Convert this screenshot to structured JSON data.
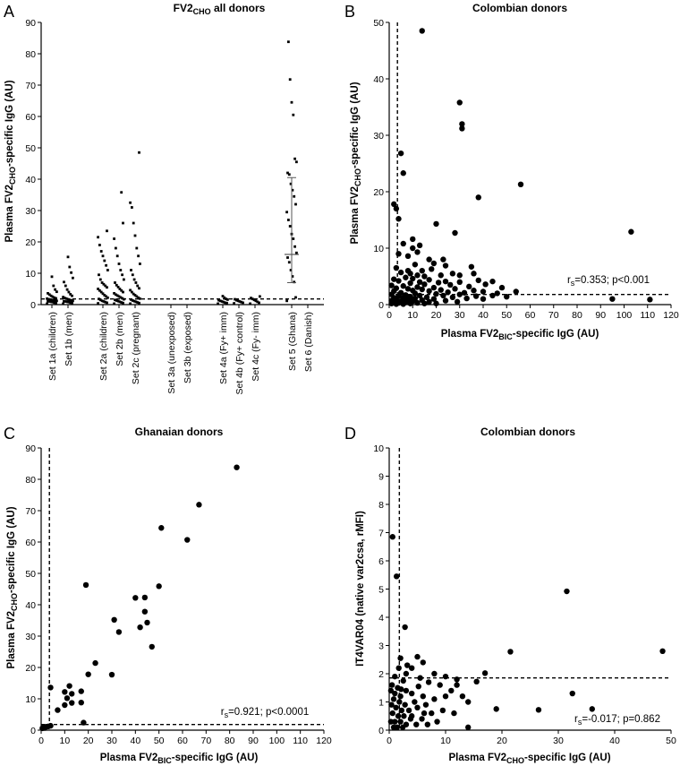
{
  "chart_data": [
    {
      "panel": "A",
      "type": "scatter",
      "title": "FV2CHO all donors",
      "title_main": "FV2",
      "title_sub": "CHO",
      "title_tail": " all donors",
      "ylabel_main": "Plasma FV2",
      "ylabel_sub": "CHO",
      "ylabel_tail": "-specific IgG (AU)",
      "ylim": [
        0,
        90
      ],
      "yticks": [
        0,
        10,
        20,
        30,
        40,
        50,
        60,
        70,
        80,
        90
      ],
      "cutoff": 1.8,
      "categories": [
        "Set 1a (children)",
        "Set 1b (men)",
        "Set 2a (children)",
        "Set 2b (men)",
        "Set 2c (pregnant)",
        "Set 3a (unexposed)",
        "Set 3b (exposed)",
        "Set 4a (Fy+ imm)",
        "Set 4b (Fy+ control)",
        "Set 4c (Fy- imm)",
        "Set 5 (Ghana)",
        "Set 6 (Danish)"
      ],
      "groups": [
        [
          0.3,
          0.5,
          0.6,
          0.8,
          0.9,
          1.0,
          1.1,
          1.2,
          1.3,
          1.4,
          1.5,
          1.6,
          1.7,
          1.9,
          2.0,
          2.2,
          2.5,
          2.8,
          3.2,
          3.6,
          4.1,
          4.8,
          6.0,
          8.9
        ],
        [
          0.3,
          0.5,
          0.6,
          0.8,
          0.9,
          1.0,
          1.1,
          1.2,
          1.4,
          1.5,
          1.7,
          1.9,
          2.1,
          2.4,
          2.8,
          3.3,
          4.0,
          4.8,
          6.0,
          7.2,
          8.5,
          10.2,
          12.0,
          15.2
        ],
        [
          0.4,
          0.6,
          0.8,
          1.0,
          1.2,
          1.5,
          1.8,
          2.2,
          2.6,
          3.0,
          3.5,
          4.0,
          4.5,
          5.0,
          5.5,
          6.0,
          6.5,
          7.0,
          8.0,
          9.5,
          11.0,
          12.5,
          14.0,
          15.5,
          17.0,
          19.0,
          21.5,
          23.5
        ],
        [
          0.3,
          0.5,
          0.7,
          0.9,
          1.1,
          1.3,
          1.5,
          1.7,
          2.0,
          2.3,
          2.6,
          2.9,
          3.2,
          3.6,
          4.0,
          4.5,
          5.0,
          5.6,
          6.2,
          7.0,
          8.0,
          9.5,
          11.0,
          13.0,
          15.5,
          18.0,
          21.0,
          26.0,
          35.8
        ],
        [
          0.3,
          0.5,
          0.7,
          0.9,
          1.1,
          1.3,
          1.6,
          1.9,
          2.2,
          2.6,
          3.0,
          3.4,
          4.0,
          4.6,
          5.2,
          6.0,
          7.0,
          8.0,
          9.5,
          11.0,
          13.0,
          15.5,
          18.0,
          22.0,
          26.0,
          31.0,
          32.5,
          48.5
        ],
        [],
        [],
        [
          0.3,
          0.5,
          0.6,
          0.8,
          1.0,
          1.2,
          1.4,
          1.6,
          1.8,
          2.2,
          2.7
        ],
        [
          0.4,
          0.6,
          0.8,
          1.0,
          1.2,
          1.4,
          1.7
        ],
        [
          0.3,
          0.6,
          0.9,
          1.2,
          1.5,
          1.8,
          2.1,
          2.6
        ],
        [
          1.2,
          2.3,
          7.2,
          9.0,
          11.0,
          13.5,
          15.0,
          16.5,
          18.5,
          21.0,
          22.5,
          25.0,
          27.0,
          29.5,
          32.0,
          34.5,
          36.5,
          38.5,
          41.5,
          42.0,
          45.5,
          46.5,
          60.5,
          64.5,
          71.8,
          83.8
        ],
        []
      ],
      "median_bars": [
        {
          "group": 10,
          "median": 16.0,
          "low": 7.0,
          "high": 40.5
        }
      ]
    },
    {
      "panel": "B",
      "type": "scatter",
      "title": "Colombian donors",
      "xlabel_main": "Plasma FV2",
      "xlabel_sub": "BIC",
      "xlabel_tail": "-specific IgG (AU)",
      "ylabel_main": "Plasma FV2",
      "ylabel_sub": "CHO",
      "ylabel_tail": "-specific IgG (AU)",
      "xlim": [
        0,
        120
      ],
      "ylim": [
        0,
        50
      ],
      "xticks": [
        0,
        10,
        20,
        30,
        40,
        50,
        60,
        70,
        80,
        90,
        100,
        110,
        120
      ],
      "yticks": [
        0,
        10,
        20,
        30,
        40,
        50
      ],
      "x_cutoff": 3.5,
      "y_cutoff": 1.8,
      "stat_prefix": "r",
      "stat_sub": "s",
      "stat_text": "=0.353; p<0.001",
      "points": [
        [
          14,
          48.5
        ],
        [
          30,
          35.8
        ],
        [
          31,
          32.0
        ],
        [
          31,
          31.2
        ],
        [
          5,
          26.8
        ],
        [
          6,
          23.3
        ],
        [
          56,
          21.3
        ],
        [
          38,
          19.0
        ],
        [
          2,
          17.8
        ],
        [
          3,
          17.0
        ],
        [
          4,
          15.2
        ],
        [
          20,
          14.3
        ],
        [
          103,
          12.9
        ],
        [
          28,
          12.7
        ],
        [
          10,
          11.6
        ],
        [
          6,
          10.8
        ],
        [
          13,
          10.5
        ],
        [
          10,
          10.0
        ],
        [
          12,
          9.3
        ],
        [
          4,
          9.0
        ],
        [
          8,
          8.6
        ],
        [
          17,
          8.0
        ],
        [
          23,
          8.0
        ],
        [
          19,
          7.3
        ],
        [
          11,
          7.1
        ],
        [
          24,
          6.9
        ],
        [
          3,
          6.5
        ],
        [
          8,
          6.0
        ],
        [
          14,
          6.0
        ],
        [
          35,
          6.7
        ],
        [
          18,
          6.3
        ],
        [
          5,
          5.7
        ],
        [
          9,
          5.5
        ],
        [
          12,
          5.2
        ],
        [
          15,
          5.0
        ],
        [
          22,
          5.2
        ],
        [
          27,
          5.5
        ],
        [
          30,
          5.2
        ],
        [
          36,
          5.5
        ],
        [
          7,
          4.8
        ],
        [
          2,
          4.5
        ],
        [
          10,
          4.6
        ],
        [
          17,
          4.4
        ],
        [
          24,
          4.1
        ],
        [
          4,
          4.2
        ],
        [
          13,
          4.0
        ],
        [
          21,
          3.9
        ],
        [
          30,
          4.0
        ],
        [
          38,
          4.3
        ],
        [
          44,
          4.1
        ],
        [
          9,
          3.8
        ],
        [
          15,
          3.6
        ],
        [
          1,
          3.4
        ],
        [
          26,
          3.5
        ],
        [
          34,
          3.2
        ],
        [
          41,
          3.6
        ],
        [
          6,
          3.3
        ],
        [
          12,
          3.1
        ],
        [
          19,
          3.0
        ],
        [
          48,
          3.0
        ],
        [
          3,
          2.9
        ],
        [
          8,
          2.8
        ],
        [
          14,
          2.7
        ],
        [
          22,
          2.6
        ],
        [
          28,
          2.8
        ],
        [
          36,
          2.5
        ],
        [
          2,
          2.4
        ],
        [
          10,
          2.5
        ],
        [
          17,
          2.4
        ],
        [
          25,
          2.2
        ],
        [
          32,
          2.1
        ],
        [
          40,
          2.3
        ],
        [
          46,
          2.0
        ],
        [
          54,
          2.3
        ],
        [
          5,
          2.1
        ],
        [
          11,
          2.0
        ],
        [
          20,
          1.9
        ],
        [
          30,
          1.8
        ],
        [
          1,
          1.8
        ],
        [
          7,
          1.7
        ],
        [
          13,
          1.6
        ],
        [
          23,
          1.6
        ],
        [
          37,
          1.5
        ],
        [
          44,
          1.6
        ],
        [
          4,
          1.5
        ],
        [
          9,
          1.4
        ],
        [
          16,
          1.3
        ],
        [
          27,
          1.3
        ],
        [
          50,
          1.4
        ],
        [
          2,
          1.2
        ],
        [
          6,
          1.2
        ],
        [
          11,
          1.1
        ],
        [
          19,
          1.0
        ],
        [
          33,
          1.1
        ],
        [
          3,
          0.9
        ],
        [
          8,
          0.9
        ],
        [
          14,
          0.8
        ],
        [
          24,
          0.7
        ],
        [
          1,
          0.7
        ],
        [
          5,
          0.6
        ],
        [
          10,
          0.6
        ],
        [
          17,
          0.5
        ],
        [
          29,
          0.5
        ],
        [
          2,
          0.4
        ],
        [
          7,
          0.4
        ],
        [
          12,
          0.3
        ],
        [
          4,
          0.3
        ],
        [
          1,
          0.2
        ],
        [
          3,
          0.1
        ],
        [
          9,
          0.2
        ],
        [
          20,
          0.2
        ],
        [
          95,
          1.0
        ],
        [
          111,
          0.9
        ],
        [
          6,
          0.1
        ],
        [
          15,
          0.2
        ],
        [
          40,
          1.0
        ]
      ]
    },
    {
      "panel": "C",
      "type": "scatter",
      "title": "Ghanaian donors",
      "xlabel_main": "Plasma FV2",
      "xlabel_sub": "BIC",
      "xlabel_tail": "-specific IgG (AU)",
      "ylabel_main": "Plasma FV2",
      "ylabel_sub": "CHO",
      "ylabel_tail": "-specific IgG (AU)",
      "xlim": [
        0,
        120
      ],
      "ylim": [
        0,
        90
      ],
      "xticks": [
        0,
        10,
        20,
        30,
        40,
        50,
        60,
        70,
        80,
        90,
        100,
        110,
        120
      ],
      "yticks": [
        0,
        10,
        20,
        30,
        40,
        50,
        60,
        70,
        80,
        90
      ],
      "x_cutoff": 3.5,
      "y_cutoff": 1.8,
      "stat_prefix": "r",
      "stat_sub": "s",
      "stat_text": "=0.921; p<0.0001",
      "points": [
        [
          83,
          83.8
        ],
        [
          67,
          71.9
        ],
        [
          51,
          64.5
        ],
        [
          62,
          60.7
        ],
        [
          19,
          46.3
        ],
        [
          50,
          45.9
        ],
        [
          40,
          42.2
        ],
        [
          44,
          42.3
        ],
        [
          42,
          32.8
        ],
        [
          44,
          37.8
        ],
        [
          45,
          34.3
        ],
        [
          31,
          35.2
        ],
        [
          33,
          31.3
        ],
        [
          47,
          26.6
        ],
        [
          23,
          21.4
        ],
        [
          20,
          17.8
        ],
        [
          30,
          17.7
        ],
        [
          12,
          14.1
        ],
        [
          4,
          13.6
        ],
        [
          10,
          12.2
        ],
        [
          13,
          11.6
        ],
        [
          11,
          10.2
        ],
        [
          17,
          12.4
        ],
        [
          13,
          8.7
        ],
        [
          10,
          8.0
        ],
        [
          17,
          8.8
        ],
        [
          7,
          6.4
        ],
        [
          18,
          2.4
        ],
        [
          4,
          1.4
        ],
        [
          2,
          1.1
        ],
        [
          1,
          0.9
        ],
        [
          0.5,
          0.6
        ],
        [
          1.5,
          0.7
        ],
        [
          3,
          1.2
        ]
      ]
    },
    {
      "panel": "D",
      "type": "scatter",
      "title": "Colombian donors",
      "xlabel_main": "Plasma FV2",
      "xlabel_sub": "CHO",
      "xlabel_tail": "-specific IgG (AU)",
      "ylabel": "IT4VAR04 (native var2csa, rMFI)",
      "xlim": [
        0,
        50
      ],
      "ylim": [
        0,
        10
      ],
      "xticks": [
        0,
        10,
        20,
        30,
        40,
        50
      ],
      "yticks": [
        0,
        1,
        2,
        3,
        4,
        5,
        6,
        7,
        8,
        9,
        10
      ],
      "x_cutoff": 1.8,
      "y_cutoff": 1.85,
      "stat_prefix": "r",
      "stat_sub": "s",
      "stat_text": "=-0.017; p=0.862",
      "points": [
        [
          0.6,
          6.85
        ],
        [
          1.3,
          5.45
        ],
        [
          31.5,
          4.92
        ],
        [
          2.8,
          3.65
        ],
        [
          48.5,
          2.8
        ],
        [
          21.5,
          2.78
        ],
        [
          32.5,
          1.3
        ],
        [
          36,
          0.75
        ],
        [
          26.5,
          0.72
        ],
        [
          17,
          2.02
        ],
        [
          15.5,
          1.72
        ],
        [
          19,
          0.75
        ],
        [
          14,
          0.1
        ],
        [
          5,
          2.6
        ],
        [
          6,
          2.4
        ],
        [
          2,
          2.55
        ],
        [
          4,
          2.2
        ],
        [
          8,
          2.0
        ],
        [
          10,
          1.9
        ],
        [
          12,
          1.6
        ],
        [
          3,
          2.0
        ],
        [
          1,
          1.9
        ],
        [
          0.5,
          1.6
        ],
        [
          1.5,
          1.5
        ],
        [
          2.5,
          1.75
        ],
        [
          5.5,
          1.85
        ],
        [
          7,
          1.7
        ],
        [
          9,
          1.6
        ],
        [
          11,
          1.4
        ],
        [
          13,
          1.2
        ],
        [
          0.3,
          1.4
        ],
        [
          1,
          1.3
        ],
        [
          2,
          1.2
        ],
        [
          3,
          1.4
        ],
        [
          4,
          1.3
        ],
        [
          6,
          1.2
        ],
        [
          8,
          1.1
        ],
        [
          10,
          1.2
        ],
        [
          0.8,
          1.1
        ],
        [
          1.8,
          1.0
        ],
        [
          2.8,
          0.9
        ],
        [
          4.5,
          1.0
        ],
        [
          6.5,
          0.9
        ],
        [
          9.5,
          0.7
        ],
        [
          11.5,
          0.6
        ],
        [
          0.4,
          0.9
        ],
        [
          1.2,
          0.8
        ],
        [
          2.2,
          0.7
        ],
        [
          3.5,
          0.7
        ],
        [
          5,
          0.8
        ],
        [
          7.5,
          0.6
        ],
        [
          0.6,
          0.6
        ],
        [
          1.6,
          0.5
        ],
        [
          2.6,
          0.5
        ],
        [
          4,
          0.5
        ],
        [
          5.8,
          0.4
        ],
        [
          8.5,
          0.3
        ],
        [
          0.3,
          0.3
        ],
        [
          1,
          0.3
        ],
        [
          2,
          0.3
        ],
        [
          3,
          0.2
        ],
        [
          4.8,
          0.2
        ],
        [
          6.8,
          0.2
        ],
        [
          1.4,
          0.1
        ],
        [
          2.4,
          0.1
        ],
        [
          0.8,
          0.1
        ],
        [
          3.8,
          0.4
        ],
        [
          12,
          1.8
        ],
        [
          14,
          1.0
        ],
        [
          3.2,
          2.3
        ],
        [
          1.7,
          2.2
        ],
        [
          2.1,
          1.45
        ],
        [
          5.2,
          1.55
        ],
        [
          6.2,
          0.6
        ]
      ]
    }
  ]
}
